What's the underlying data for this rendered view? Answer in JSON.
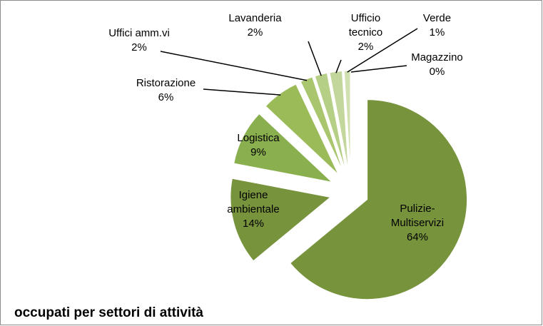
{
  "chart_data": {
    "type": "pie",
    "title": "occupati per settori di attività",
    "categories": [
      "Pulizie-Multiservizi",
      "Igiene ambientale",
      "Logistica",
      "Ristorazione",
      "Uffici amm.vi",
      "Lavanderia",
      "Ufficio tecnico",
      "Verde",
      "Magazzino"
    ],
    "values": [
      64,
      14,
      9,
      6,
      2,
      2,
      2,
      1,
      0
    ],
    "value_labels": [
      "64%",
      "14%",
      "9%",
      "6%",
      "2%",
      "2%",
      "2%",
      "1%",
      "0%"
    ],
    "colors": [
      "#77933c",
      "#77933c",
      "#8aaf4e",
      "#9bbb59",
      "#a9c56e",
      "#b6cf86",
      "#c3d69b",
      "#d1e0b2",
      "#dde8c8"
    ]
  }
}
